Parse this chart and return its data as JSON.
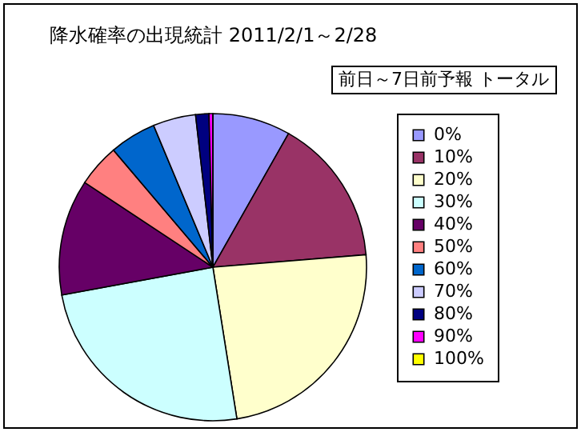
{
  "chart_data": {
    "type": "pie",
    "title": "降水確率の出現統計 2011/2/1～2/28",
    "subtitle": "前日～7日前予報 トータル",
    "legend": "right",
    "categories": [
      "0%",
      "10%",
      "20%",
      "30%",
      "40%",
      "50%",
      "60%",
      "70%",
      "80%",
      "90%",
      "100%"
    ],
    "values": [
      8.2,
      15.5,
      23.8,
      24.6,
      12.2,
      4.5,
      4.9,
      4.5,
      1.4,
      0.4,
      0
    ],
    "colors": [
      "#9999ff",
      "#993366",
      "#ffffcc",
      "#ccffff",
      "#660066",
      "#ff8080",
      "#0066cc",
      "#ccccff",
      "#000080",
      "#ff00ff",
      "#ffff00"
    ]
  }
}
